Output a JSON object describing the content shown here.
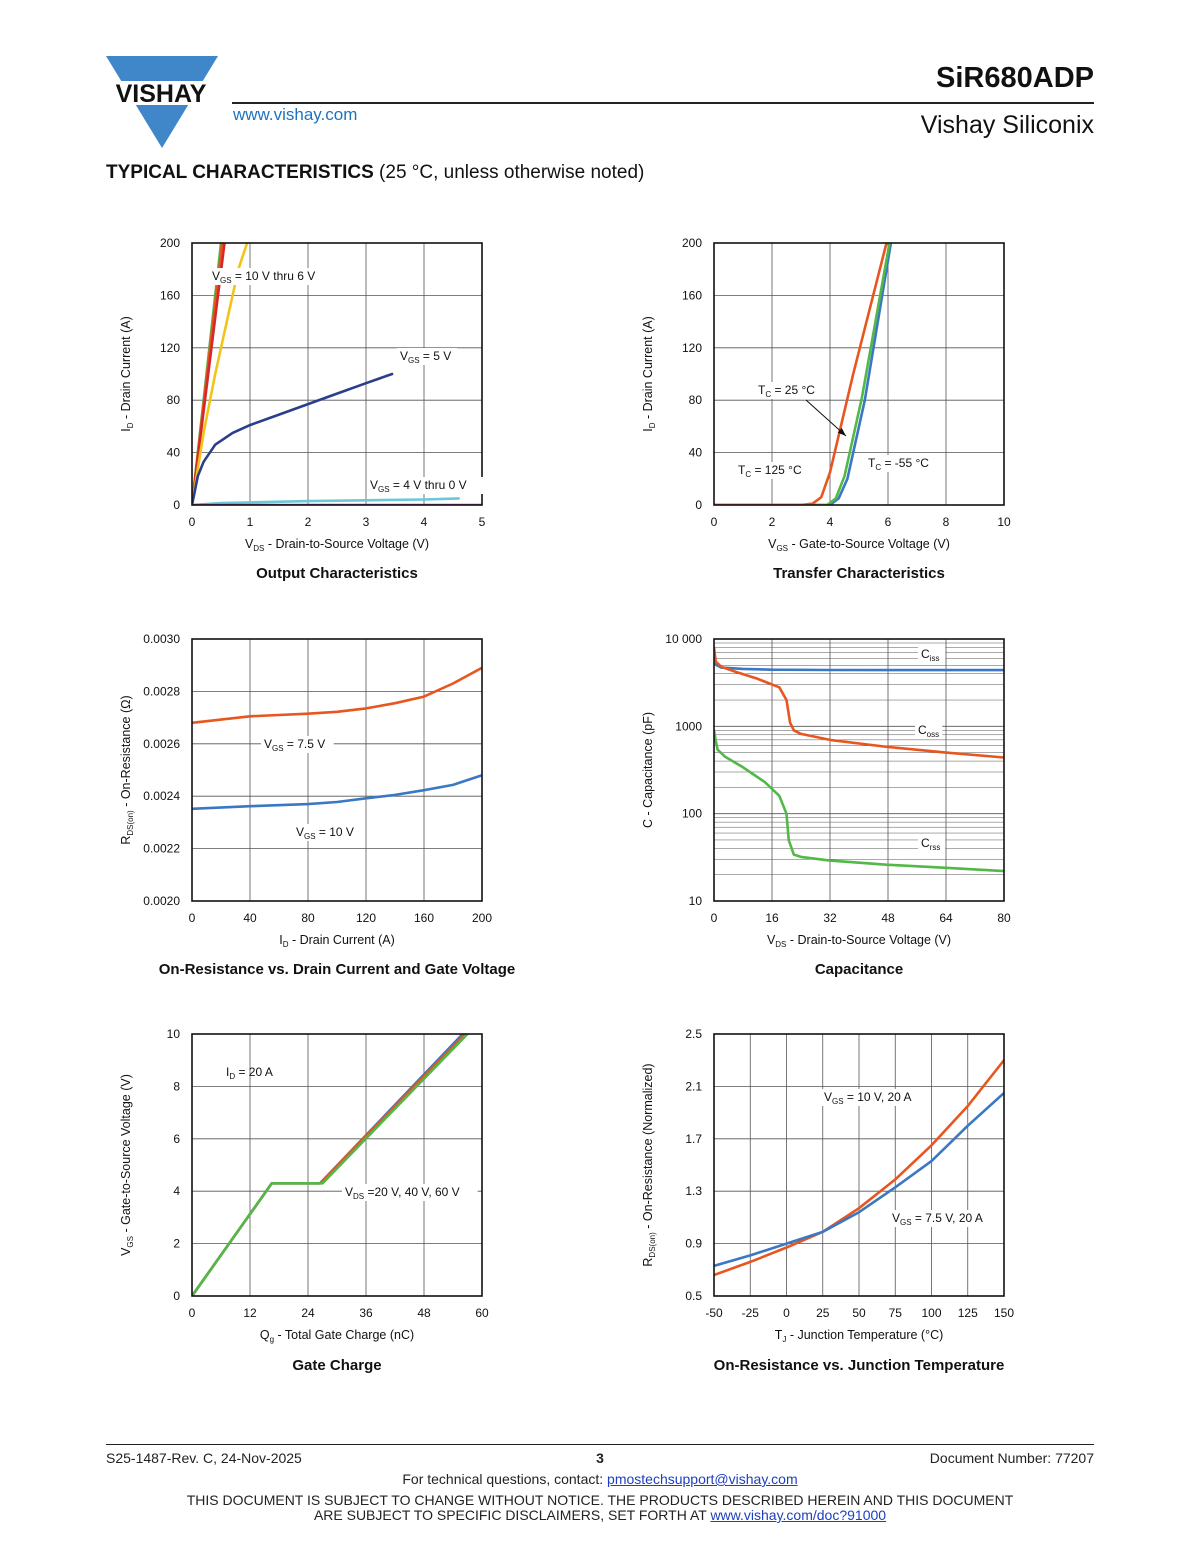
{
  "header": {
    "brand": "VISHAY",
    "website": "www.vishay.com",
    "part_number": "SiR680ADP",
    "company": "Vishay Siliconix"
  },
  "section": {
    "title_bold": "TYPICAL CHARACTERISTICS",
    "title_rest": " (25 °C, unless otherwise noted)"
  },
  "colors": {
    "blue": "#3a78c4",
    "orange": "#e8561f",
    "green": "#52b848",
    "navy": "#2b3e8c",
    "cyan": "#6cc8d8",
    "magenta": "#b03ca0",
    "yellow": "#f2c419",
    "red": "#d4282a",
    "brand_blue": "#3f87c8"
  },
  "chart_data": [
    {
      "id": "output",
      "type": "line",
      "title": "Output Characteristics",
      "xlabel": "V",
      "xlabel_sub": "DS",
      "xlabel_rest": " - Drain-to-Source Voltage (V)",
      "ylabel": "I",
      "ylabel_sub": "D",
      "ylabel_rest": " - Drain Current (A)",
      "xlim": [
        0,
        5
      ],
      "ylim": [
        0,
        200
      ],
      "xticks": [
        "0",
        "1",
        "2",
        "3",
        "4",
        "5"
      ],
      "yticks": [
        "0",
        "40",
        "80",
        "120",
        "160",
        "200"
      ],
      "series": [
        {
          "color": "#52b848",
          "x": [
            0,
            0.25,
            0.5
          ],
          "y": [
            0,
            100,
            200
          ]
        },
        {
          "color": "#e8561f",
          "x": [
            0,
            0.26,
            0.52
          ],
          "y": [
            0,
            100,
            200
          ]
        },
        {
          "color": "#d4282a",
          "x": [
            0,
            0.28,
            0.56
          ],
          "y": [
            0,
            100,
            200
          ]
        },
        {
          "color": "#f2c419",
          "x": [
            0,
            0.2,
            0.4,
            0.6,
            0.8,
            0.95
          ],
          "y": [
            0,
            55,
            100,
            140,
            180,
            200
          ]
        },
        {
          "color": "#2b3e8c",
          "x": [
            0,
            0.1,
            0.2,
            0.4,
            0.7,
            1.0,
            1.5,
            2.0,
            2.5,
            3.0,
            3.45
          ],
          "y": [
            0,
            22,
            33,
            46,
            55,
            61,
            69,
            77,
            85,
            93,
            100
          ]
        },
        {
          "color": "#6cc8d8",
          "x": [
            0,
            0.5,
            1,
            2,
            3,
            4,
            4.6
          ],
          "y": [
            0,
            1.5,
            2,
            3,
            3.6,
            4.2,
            5
          ]
        },
        {
          "color": "#b03ca0",
          "x": [
            0,
            5
          ],
          "y": [
            0,
            0
          ]
        }
      ],
      "annotations": [
        {
          "pre": "V",
          "sub": "GS",
          "post": " = 10 V thru 6 V"
        },
        {
          "pre": "V",
          "sub": "GS",
          "post": " = 5 V"
        },
        {
          "pre": "V",
          "sub": "GS",
          "post": " = 4 V thru 0 V"
        }
      ]
    },
    {
      "id": "transfer",
      "type": "line",
      "title": "Transfer Characteristics",
      "xlabel": "V",
      "xlabel_sub": "GS",
      "xlabel_rest": " - Gate-to-Source Voltage (V)",
      "ylabel": "I",
      "ylabel_sub": "D",
      "ylabel_rest": " - Drain Current (A)",
      "xlim": [
        0,
        10
      ],
      "ylim": [
        0,
        200
      ],
      "xticks": [
        "0",
        "2",
        "4",
        "6",
        "8",
        "10"
      ],
      "yticks": [
        "0",
        "40",
        "80",
        "120",
        "160",
        "200"
      ],
      "series": [
        {
          "color": "#3a78c4",
          "x": [
            0,
            3.5,
            4.0,
            4.3,
            4.6,
            5.2,
            6.1
          ],
          "y": [
            0,
            0,
            0,
            5,
            20,
            80,
            200
          ]
        },
        {
          "color": "#52b848",
          "x": [
            0,
            3.4,
            3.9,
            4.2,
            4.5,
            5.1,
            6.05
          ],
          "y": [
            0,
            0,
            0,
            5,
            22,
            82,
            200
          ]
        },
        {
          "color": "#e8561f",
          "x": [
            0,
            3.0,
            3.4,
            3.7,
            4.0,
            4.8,
            5.95
          ],
          "y": [
            0,
            0,
            1,
            6,
            25,
            100,
            200
          ]
        }
      ],
      "annotations": [
        {
          "pre": "T",
          "sub": "C",
          "post": " = 25 °C"
        },
        {
          "pre": "T",
          "sub": "C",
          "post": " = 125 °C"
        },
        {
          "pre": "T",
          "sub": "C",
          "post": " = -55 °C"
        }
      ]
    },
    {
      "id": "onres",
      "type": "line",
      "title": "On-Resistance vs. Drain Current and Gate Voltage",
      "xlabel": "I",
      "xlabel_sub": "D",
      "xlabel_rest": " - Drain Current (A)",
      "ylabel": "R",
      "ylabel_sub": "DS(on)",
      "ylabel_rest": " - On-Resistance (Ω)",
      "xlim": [
        0,
        200
      ],
      "ylim": [
        0.002,
        0.003
      ],
      "xticks": [
        "0",
        "40",
        "80",
        "120",
        "160",
        "200"
      ],
      "yticks": [
        "0.0020",
        "0.0022",
        "0.0024",
        "0.0026",
        "0.0028",
        "0.0030"
      ],
      "series": [
        {
          "color": "#e8561f",
          "x": [
            0,
            40,
            80,
            100,
            120,
            140,
            160,
            180,
            200
          ],
          "y": [
            0.00268,
            0.002705,
            0.002715,
            0.002722,
            0.002735,
            0.002755,
            0.00278,
            0.00283,
            0.00289
          ]
        },
        {
          "color": "#3a78c4",
          "x": [
            0,
            40,
            80,
            100,
            120,
            140,
            160,
            180,
            200
          ],
          "y": [
            0.002352,
            0.002362,
            0.00237,
            0.002378,
            0.002392,
            0.002405,
            0.002423,
            0.002443,
            0.00248
          ]
        }
      ],
      "annotations": [
        {
          "pre": "V",
          "sub": "GS",
          "post": " = 7.5 V"
        },
        {
          "pre": "V",
          "sub": "GS",
          "post": " = 10 V"
        }
      ]
    },
    {
      "id": "cap",
      "type": "line",
      "title": "Capacitance",
      "xlabel": "V",
      "xlabel_sub": "DS",
      "xlabel_rest": " - Drain-to-Source Voltage (V)",
      "ylabel": "C - Capacitance (pF)",
      "ylabel_sub": "",
      "ylabel_rest": "",
      "log_y": true,
      "xlim": [
        0,
        80
      ],
      "ylim": [
        10,
        10000
      ],
      "xticks": [
        "0",
        "16",
        "32",
        "48",
        "64",
        "80"
      ],
      "yticks": [
        "10",
        "100",
        "1000",
        "10 000"
      ],
      "series": [
        {
          "color": "#3a78c4",
          "x": [
            0,
            2,
            8,
            16,
            32,
            48,
            64,
            80
          ],
          "y": [
            5200,
            4700,
            4550,
            4450,
            4420,
            4400,
            4400,
            4400
          ]
        },
        {
          "color": "#e8561f",
          "x": [
            0,
            0.5,
            2,
            6,
            12,
            18,
            20,
            21,
            22,
            24,
            32,
            48,
            64,
            80
          ],
          "y": [
            8000,
            5500,
            4800,
            4200,
            3500,
            2800,
            2000,
            1100,
            900,
            820,
            700,
            580,
            500,
            440
          ]
        },
        {
          "color": "#52b848",
          "x": [
            0,
            0.5,
            1,
            3,
            8,
            14,
            18,
            20,
            20.6,
            22,
            24,
            32,
            48,
            64,
            80
          ],
          "y": [
            900,
            680,
            540,
            450,
            340,
            230,
            160,
            100,
            50,
            34,
            32,
            29,
            26,
            24,
            22
          ]
        }
      ],
      "annotations": [
        {
          "pre": "C",
          "sub": "iss",
          "post": ""
        },
        {
          "pre": "C",
          "sub": "oss",
          "post": ""
        },
        {
          "pre": "C",
          "sub": "rss",
          "post": ""
        }
      ]
    },
    {
      "id": "gate",
      "type": "line",
      "title": "Gate Charge",
      "xlabel": "Q",
      "xlabel_sub": "g",
      "xlabel_rest": " - Total Gate Charge (nC)",
      "ylabel": "V",
      "ylabel_sub": "GS",
      "ylabel_rest": " - Gate-to-Source Voltage (V)",
      "xlim": [
        0,
        60
      ],
      "ylim": [
        0,
        10
      ],
      "xticks": [
        "0",
        "12",
        "24",
        "36",
        "48",
        "60"
      ],
      "yticks": [
        "0",
        "2",
        "4",
        "6",
        "8",
        "10"
      ],
      "series": [
        {
          "color": "#3a78c4",
          "x": [
            0,
            16.5,
            26.5,
            56
          ],
          "y": [
            0,
            4.3,
            4.3,
            10
          ]
        },
        {
          "color": "#e8561f",
          "x": [
            0,
            16.5,
            26.5,
            56.5
          ],
          "y": [
            0,
            4.3,
            4.3,
            10
          ]
        },
        {
          "color": "#52b848",
          "x": [
            0,
            16.5,
            27,
            57
          ],
          "y": [
            0,
            4.3,
            4.3,
            10
          ]
        }
      ],
      "annotations": [
        {
          "pre": "I",
          "sub": "D",
          "post": " = 20 A"
        },
        {
          "pre": "V",
          "sub": "DS",
          "post": " =20 V, 40 V, 60 V"
        }
      ]
    },
    {
      "id": "onrestemp",
      "type": "line",
      "title": "On-Resistance vs. Junction Temperature",
      "xlabel": "T",
      "xlabel_sub": "J",
      "xlabel_rest": " - Junction Temperature (°C)",
      "ylabel": "R",
      "ylabel_sub": "DS(on)",
      "ylabel_rest": " - On-Resistance (Normalized)",
      "xlim": [
        -50,
        150
      ],
      "ylim": [
        0.5,
        2.5
      ],
      "xticks": [
        "-50",
        "-25",
        "0",
        "25",
        "50",
        "75",
        "100",
        "125",
        "150"
      ],
      "yticks": [
        "0.5",
        "0.9",
        "1.3",
        "1.7",
        "2.1",
        "2.5"
      ],
      "series": [
        {
          "color": "#e8561f",
          "x": [
            -50,
            -25,
            0,
            25,
            50,
            75,
            100,
            125,
            150
          ],
          "y": [
            0.66,
            0.76,
            0.87,
            0.99,
            1.17,
            1.39,
            1.65,
            1.95,
            2.3
          ]
        },
        {
          "color": "#3a78c4",
          "x": [
            -50,
            -25,
            0,
            25,
            50,
            75,
            100,
            125,
            150
          ],
          "y": [
            0.73,
            0.81,
            0.9,
            0.99,
            1.14,
            1.33,
            1.53,
            1.8,
            2.05
          ]
        }
      ],
      "annotations": [
        {
          "pre": "V",
          "sub": "GS",
          "post": " = 10 V, 20 A"
        },
        {
          "pre": "V",
          "sub": "GS",
          "post": " = 7.5 V, 20 A"
        }
      ]
    }
  ],
  "footer": {
    "revision": "S25-1487-Rev. C, 24-Nov-2025",
    "page": "3",
    "doc_number": "Document Number: 77207",
    "contact_text": "For technical questions, contact: ",
    "contact_email": "pmostechsupport@vishay.com",
    "disclaimer_1": "THIS DOCUMENT IS SUBJECT TO CHANGE WITHOUT NOTICE. THE PRODUCTS DESCRIBED HEREIN AND THIS DOCUMENT",
    "disclaimer_2": "ARE SUBJECT TO SPECIFIC DISCLAIMERS, SET FORTH AT ",
    "disclaimer_link": "www.vishay.com/doc?91000"
  }
}
